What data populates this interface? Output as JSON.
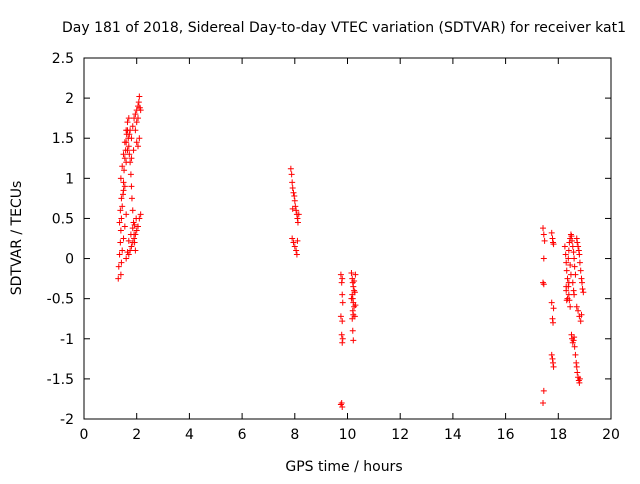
{
  "chart_data": {
    "type": "scatter",
    "title": "Day 181 of 2018, Sidereal Day-to-day VTEC variation (SDTVAR) for receiver kat1",
    "xlabel": "GPS time / hours",
    "ylabel": "SDTVAR / TECUs",
    "xlim": [
      0,
      20
    ],
    "ylim": [
      -2,
      2.5
    ],
    "x_ticks": [
      0,
      2,
      4,
      6,
      8,
      10,
      12,
      14,
      16,
      18,
      20
    ],
    "y_ticks": [
      -2,
      -1.5,
      -1,
      -0.5,
      0,
      0.5,
      1,
      1.5,
      2,
      2.5
    ],
    "x_tick_labels": [
      "0",
      "2",
      "4",
      "6",
      "8",
      "10",
      "12",
      "14",
      "16",
      "18",
      "20"
    ],
    "y_tick_labels": [
      "-2",
      "-1.5",
      "-1",
      "-0.5",
      "0",
      "0.5",
      "1",
      "1.5",
      "2",
      "2.5"
    ],
    "grid": false,
    "marker": "+",
    "color": "#ff0000",
    "series": [
      {
        "name": "SDTVAR",
        "points": [
          [
            1.3,
            -0.25
          ],
          [
            1.32,
            -0.1
          ],
          [
            1.35,
            0.05
          ],
          [
            1.38,
            0.2
          ],
          [
            1.4,
            0.35
          ],
          [
            1.42,
            0.5
          ],
          [
            1.45,
            0.65
          ],
          [
            1.48,
            0.8
          ],
          [
            1.5,
            0.95
          ],
          [
            1.52,
            1.1
          ],
          [
            1.55,
            1.25
          ],
          [
            1.58,
            1.35
          ],
          [
            1.6,
            1.45
          ],
          [
            1.62,
            1.55
          ],
          [
            1.65,
            1.6
          ],
          [
            1.68,
            1.5
          ],
          [
            1.7,
            1.4
          ],
          [
            1.72,
            1.3
          ],
          [
            1.75,
            1.2
          ],
          [
            1.78,
            1.05
          ],
          [
            1.8,
            0.9
          ],
          [
            1.82,
            0.75
          ],
          [
            1.85,
            0.6
          ],
          [
            1.88,
            0.45
          ],
          [
            1.9,
            0.3
          ],
          [
            1.92,
            0.2
          ],
          [
            1.95,
            0.1
          ],
          [
            1.4,
            -0.2
          ],
          [
            1.42,
            -0.05
          ],
          [
            1.45,
            0.1
          ],
          [
            1.5,
            0.25
          ],
          [
            1.55,
            0.4
          ],
          [
            1.6,
            0.55
          ],
          [
            1.4,
            1.0
          ],
          [
            1.45,
            1.15
          ],
          [
            1.5,
            1.3
          ],
          [
            1.55,
            1.45
          ],
          [
            1.6,
            1.6
          ],
          [
            1.65,
            1.7
          ],
          [
            1.7,
            1.75
          ],
          [
            1.75,
            1.6
          ],
          [
            1.8,
            1.5
          ],
          [
            1.85,
            1.65
          ],
          [
            1.9,
            1.75
          ],
          [
            1.95,
            1.8
          ],
          [
            2.0,
            1.85
          ],
          [
            2.05,
            1.9
          ],
          [
            2.08,
            1.95
          ],
          [
            2.1,
            2.02
          ],
          [
            2.12,
            1.88
          ],
          [
            2.15,
            1.85
          ],
          [
            2.0,
            1.45
          ],
          [
            2.05,
            1.4
          ],
          [
            2.1,
            1.5
          ],
          [
            1.7,
            0.05
          ],
          [
            1.75,
            0.1
          ],
          [
            1.8,
            0.15
          ],
          [
            1.85,
            0.2
          ],
          [
            1.9,
            0.25
          ],
          [
            1.95,
            0.3
          ],
          [
            2.0,
            0.35
          ],
          [
            2.05,
            0.4
          ],
          [
            2.1,
            0.5
          ],
          [
            2.15,
            0.55
          ],
          [
            1.6,
            0.0
          ],
          [
            1.65,
            0.08
          ],
          [
            1.7,
            0.22
          ],
          [
            1.78,
            0.3
          ],
          [
            1.85,
            0.38
          ],
          [
            1.92,
            0.42
          ],
          [
            1.98,
            0.5
          ],
          [
            1.35,
            0.45
          ],
          [
            1.38,
            0.6
          ],
          [
            1.42,
            0.75
          ],
          [
            1.5,
            0.85
          ],
          [
            1.55,
            0.9
          ],
          [
            1.6,
            1.2
          ],
          [
            1.65,
            1.35
          ],
          [
            1.72,
            1.55
          ],
          [
            1.8,
            1.25
          ],
          [
            1.88,
            1.35
          ],
          [
            1.95,
            1.6
          ],
          [
            2.0,
            1.7
          ],
          [
            2.05,
            1.75
          ],
          [
            7.85,
            1.12
          ],
          [
            7.88,
            1.05
          ],
          [
            7.9,
            0.95
          ],
          [
            7.92,
            0.88
          ],
          [
            7.95,
            0.82
          ],
          [
            7.98,
            0.78
          ],
          [
            8.0,
            0.72
          ],
          [
            8.02,
            0.65
          ],
          [
            8.05,
            0.6
          ],
          [
            8.08,
            0.55
          ],
          [
            8.1,
            0.5
          ],
          [
            8.12,
            0.45
          ],
          [
            7.9,
            0.25
          ],
          [
            7.95,
            0.2
          ],
          [
            8.0,
            0.15
          ],
          [
            8.05,
            0.1
          ],
          [
            8.08,
            0.05
          ],
          [
            8.1,
            0.22
          ],
          [
            7.92,
            0.62
          ],
          [
            8.15,
            0.55
          ],
          [
            9.75,
            -0.2
          ],
          [
            9.78,
            -0.3
          ],
          [
            9.8,
            -0.45
          ],
          [
            9.75,
            -0.72
          ],
          [
            9.8,
            -0.78
          ],
          [
            9.78,
            -0.95
          ],
          [
            9.82,
            -1.0
          ],
          [
            9.8,
            -1.05
          ],
          [
            9.75,
            -1.82
          ],
          [
            9.8,
            -1.85
          ],
          [
            9.78,
            -1.8
          ],
          [
            9.8,
            -0.25
          ],
          [
            9.82,
            -0.55
          ],
          [
            10.15,
            -0.18
          ],
          [
            10.18,
            -0.25
          ],
          [
            10.2,
            -0.3
          ],
          [
            10.22,
            -0.35
          ],
          [
            10.25,
            -0.4
          ],
          [
            10.18,
            -0.45
          ],
          [
            10.2,
            -0.5
          ],
          [
            10.22,
            -0.55
          ],
          [
            10.25,
            -0.6
          ],
          [
            10.2,
            -0.65
          ],
          [
            10.22,
            -0.7
          ],
          [
            10.18,
            -0.75
          ],
          [
            10.2,
            -0.9
          ],
          [
            10.22,
            -1.02
          ],
          [
            10.25,
            -0.28
          ],
          [
            10.28,
            -0.42
          ],
          [
            10.3,
            -0.58
          ],
          [
            10.28,
            -0.72
          ],
          [
            10.15,
            -0.5
          ],
          [
            10.3,
            -0.2
          ],
          [
            17.42,
            0.38
          ],
          [
            17.45,
            0.3
          ],
          [
            17.48,
            0.22
          ],
          [
            17.45,
            0.0
          ],
          [
            17.42,
            -0.3
          ],
          [
            17.45,
            -0.32
          ],
          [
            17.45,
            -1.65
          ],
          [
            17.42,
            -1.8
          ],
          [
            17.75,
            0.32
          ],
          [
            17.78,
            0.25
          ],
          [
            17.8,
            0.2
          ],
          [
            17.82,
            0.18
          ],
          [
            17.75,
            -0.55
          ],
          [
            17.78,
            -0.75
          ],
          [
            17.8,
            -0.8
          ],
          [
            17.82,
            -0.62
          ],
          [
            17.75,
            -1.2
          ],
          [
            17.78,
            -1.25
          ],
          [
            17.8,
            -1.3
          ],
          [
            17.82,
            -1.35
          ],
          [
            18.25,
            0.15
          ],
          [
            18.28,
            0.05
          ],
          [
            18.3,
            -0.05
          ],
          [
            18.32,
            -0.15
          ],
          [
            18.35,
            -0.25
          ],
          [
            18.38,
            -0.35
          ],
          [
            18.4,
            -0.45
          ],
          [
            18.42,
            -0.52
          ],
          [
            18.45,
            -0.6
          ],
          [
            18.3,
            -0.4
          ],
          [
            18.35,
            -0.5
          ],
          [
            18.38,
            0.0
          ],
          [
            18.4,
            0.1
          ],
          [
            18.42,
            0.2
          ],
          [
            18.45,
            0.25
          ],
          [
            18.48,
            0.3
          ],
          [
            18.5,
            0.28
          ],
          [
            18.52,
            0.22
          ],
          [
            18.55,
            0.15
          ],
          [
            18.58,
            0.08
          ],
          [
            18.6,
            0.0
          ],
          [
            18.62,
            -0.1
          ],
          [
            18.65,
            -0.2
          ],
          [
            18.5,
            -0.95
          ],
          [
            18.52,
            -1.0
          ],
          [
            18.55,
            -1.05
          ],
          [
            18.58,
            -1.02
          ],
          [
            18.6,
            -0.98
          ],
          [
            18.62,
            -1.1
          ],
          [
            18.65,
            -1.2
          ],
          [
            18.68,
            -1.3
          ],
          [
            18.7,
            -1.35
          ],
          [
            18.72,
            -1.42
          ],
          [
            18.75,
            -1.48
          ],
          [
            18.78,
            -1.52
          ],
          [
            18.8,
            -1.55
          ],
          [
            18.82,
            -1.5
          ],
          [
            18.7,
            0.25
          ],
          [
            18.72,
            0.2
          ],
          [
            18.75,
            0.15
          ],
          [
            18.78,
            0.1
          ],
          [
            18.8,
            0.05
          ],
          [
            18.82,
            -0.05
          ],
          [
            18.85,
            -0.15
          ],
          [
            18.88,
            -0.25
          ],
          [
            18.9,
            -0.3
          ],
          [
            18.92,
            -0.38
          ],
          [
            18.95,
            -0.42
          ],
          [
            18.7,
            -0.6
          ],
          [
            18.75,
            -0.65
          ],
          [
            18.8,
            -0.72
          ],
          [
            18.85,
            -0.78
          ],
          [
            18.88,
            -0.7
          ],
          [
            18.3,
            -0.35
          ],
          [
            18.32,
            -0.52
          ],
          [
            18.4,
            -0.3
          ],
          [
            18.45,
            -0.08
          ],
          [
            18.48,
            -0.2
          ],
          [
            18.55,
            -0.3
          ],
          [
            18.58,
            -0.4
          ],
          [
            18.6,
            -0.45
          ]
        ]
      }
    ]
  }
}
